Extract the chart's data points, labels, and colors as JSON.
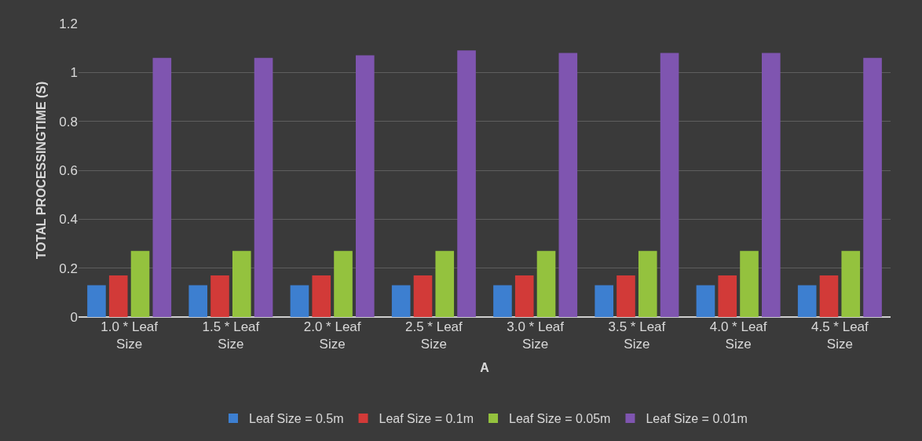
{
  "chart_data": {
    "type": "bar",
    "xlabel": "A",
    "ylabel": "TOTAL PROCESSINGTIME (S)",
    "categories": [
      "1.0 * Leaf Size",
      "1.5 * Leaf Size",
      "2.0 * Leaf Size",
      "2.5 * Leaf Size",
      "3.0 * Leaf Size",
      "3.5 * Leaf Size",
      "4.0 * Leaf Size",
      "4.5 * Leaf Size"
    ],
    "series": [
      {
        "name": "Leaf Size = 0.5m",
        "color": "#3d7fd0",
        "values": [
          0.13,
          0.13,
          0.13,
          0.13,
          0.13,
          0.13,
          0.13,
          0.13
        ]
      },
      {
        "name": "Leaf Size = 0.1m",
        "color": "#d23a38",
        "values": [
          0.17,
          0.17,
          0.17,
          0.17,
          0.17,
          0.17,
          0.17,
          0.17
        ]
      },
      {
        "name": "Leaf Size = 0.05m",
        "color": "#94c23e",
        "values": [
          0.27,
          0.27,
          0.27,
          0.27,
          0.27,
          0.27,
          0.27,
          0.27
        ]
      },
      {
        "name": "Leaf Size = 0.01m",
        "color": "#7f55b0",
        "values": [
          1.06,
          1.06,
          1.07,
          1.09,
          1.08,
          1.08,
          1.08,
          1.06
        ]
      }
    ],
    "ylim": [
      0,
      1.2
    ],
    "yticks": [
      0,
      0.2,
      0.4,
      0.6,
      0.8,
      1,
      1.2
    ],
    "grid": "y",
    "legend": "bottom"
  }
}
